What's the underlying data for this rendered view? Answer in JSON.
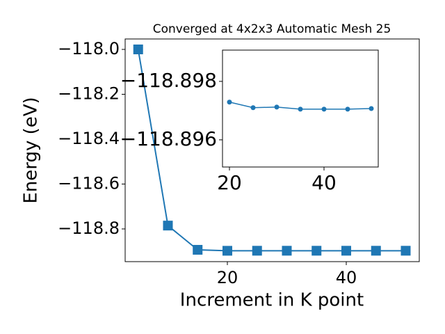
{
  "chart_data": [
    {
      "type": "line",
      "title": "Converged at 4x2x3 Automatic Mesh 25",
      "x_label": "Increment in K point",
      "y_label": "Energy (eV)",
      "x": [
        5,
        10,
        15,
        20,
        25,
        30,
        35,
        40,
        45,
        50
      ],
      "values": [
        -118.0,
        -118.785,
        -118.893,
        -118.8973,
        -118.8971,
        -118.8971,
        -118.8971,
        -118.8971,
        -118.8971,
        -118.8971
      ],
      "color": "#1f77b4",
      "marker": "square",
      "xlim": [
        2.81,
        52.28
      ],
      "xticks": [
        20,
        40
      ],
      "ylim": [
        -118.9457,
        -117.9535
      ],
      "yticks": [
        {
          "value": -118.8,
          "label": "−118.8"
        },
        {
          "value": -118.6,
          "label": "−118.6"
        },
        {
          "value": -118.4,
          "label": "−118.4"
        },
        {
          "value": -118.2,
          "label": "−118.2"
        },
        {
          "value": -118.0,
          "label": "−118.0"
        }
      ]
    },
    {
      "type": "line",
      "x": [
        20,
        25,
        30,
        35,
        40,
        45,
        50
      ],
      "values": [
        -118.89729,
        -118.8971,
        -118.89712,
        -118.89705,
        -118.89705,
        -118.89705,
        -118.89707
      ],
      "color": "#1f77b4",
      "marker": "circle",
      "xlim": [
        18.53,
        51.47
      ],
      "xticks": [
        20,
        40
      ],
      "ylim": [
        -118.89507,
        -118.89907
      ],
      "yticks": [
        {
          "value": -118.896,
          "label": "−118.896"
        },
        {
          "value": -118.898,
          "label": "−118.898"
        }
      ]
    }
  ]
}
